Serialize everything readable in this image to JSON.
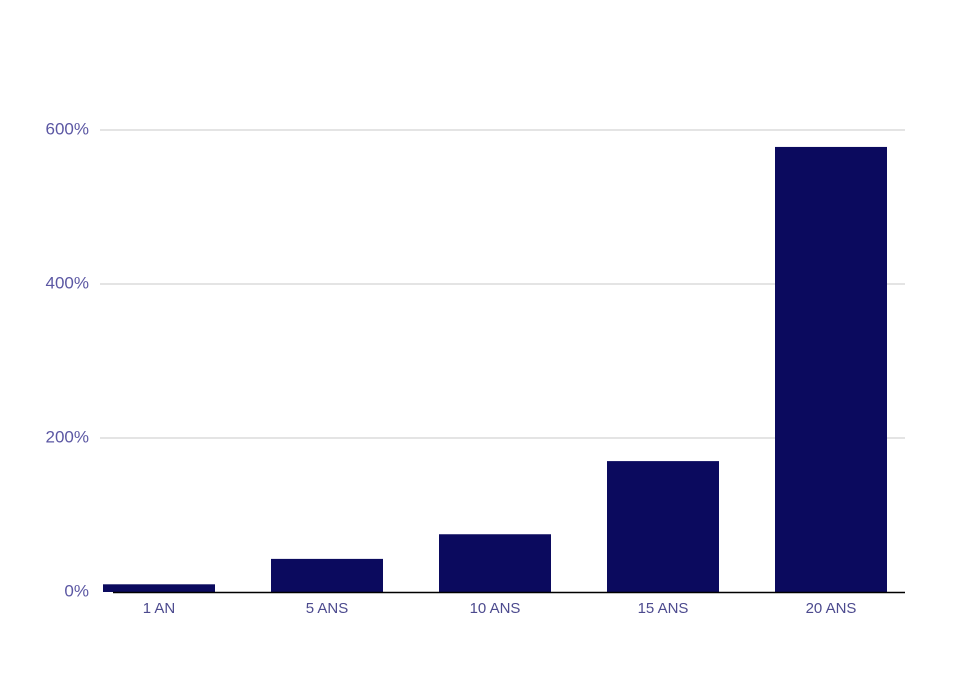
{
  "chart_data": {
    "type": "bar",
    "categories": [
      "1 AN",
      "5 ANS",
      "10 ANS",
      "15 ANS",
      "20 ANS"
    ],
    "values": [
      10,
      43,
      75,
      170,
      578
    ],
    "color": "#0b0a5e",
    "ylim": [
      0,
      600
    ],
    "yticks": [
      {
        "value": 0,
        "label": "0%"
      },
      {
        "value": 200,
        "label": "200%"
      },
      {
        "value": 400,
        "label": "400%"
      },
      {
        "value": 600,
        "label": "600%"
      }
    ],
    "grid": true
  }
}
